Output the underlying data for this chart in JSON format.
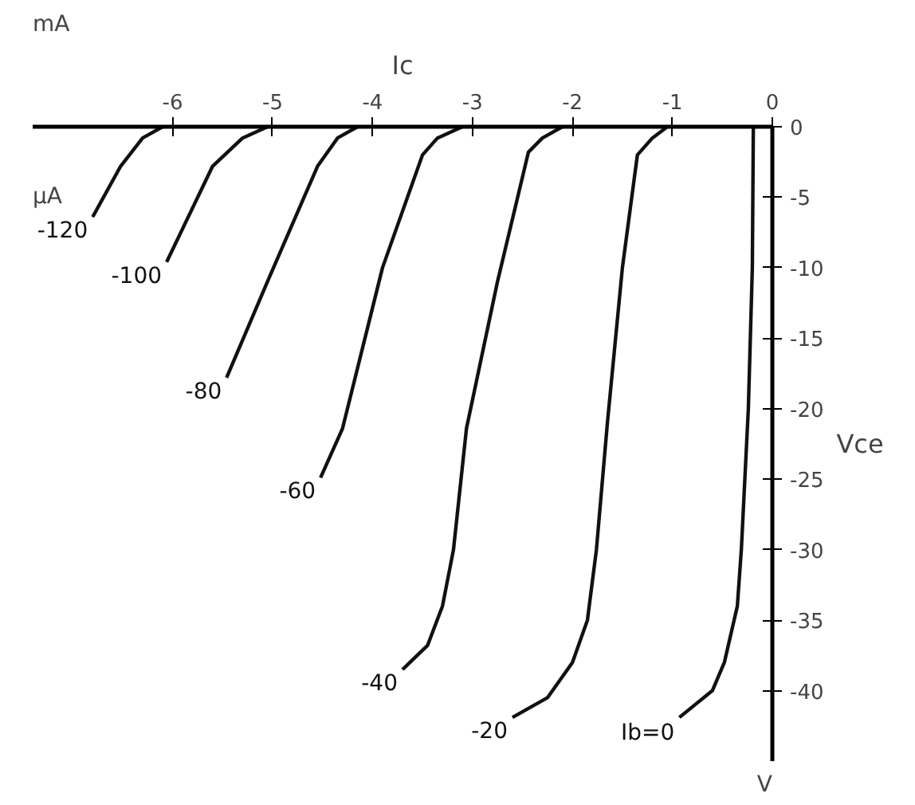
{
  "chart_data": {
    "type": "line",
    "xlabel": "Ic",
    "ylabel": "Vce",
    "xlim": [
      -7.4,
      0
    ],
    "ylim": [
      -45,
      0
    ],
    "xticks": [
      -6,
      -5,
      -4,
      -3,
      -2,
      -1,
      0
    ],
    "yticks": [
      0,
      -5,
      -10,
      -15,
      -20,
      -25,
      -30,
      -35,
      -40
    ],
    "annotations": [
      "mA",
      "µA",
      "V"
    ],
    "grid": false,
    "series": [
      {
        "name": "Ib=0",
        "color": "#111111",
        "x": [
          -0.19,
          -0.2,
          -0.24,
          -0.31,
          -0.35,
          -0.48,
          -0.6,
          -0.93
        ],
        "values": [
          0,
          -10,
          -20,
          -30,
          -34,
          -38,
          -40,
          -41.9
        ]
      },
      {
        "name": "-20",
        "color": "#111111",
        "x": [
          -1.05,
          -1.2,
          -1.35,
          -1.5,
          -1.65,
          -1.76,
          -1.85,
          -2.0,
          -2.25,
          -2.6
        ],
        "values": [
          0,
          -0.8,
          -2,
          -10,
          -21,
          -30,
          -35,
          -38,
          -40.5,
          -41.9
        ]
      },
      {
        "name": "-40",
        "color": "#111111",
        "x": [
          -2.1,
          -2.3,
          -2.44,
          -2.75,
          -3.06,
          -3.19,
          -3.3,
          -3.45,
          -3.7
        ],
        "values": [
          0,
          -0.8,
          -1.8,
          -11,
          -21.4,
          -30,
          -34,
          -36.8,
          -38.5
        ]
      },
      {
        "name": "-60",
        "color": "#111111",
        "x": [
          -3.1,
          -3.35,
          -3.5,
          -3.9,
          -4.3,
          -4.52
        ],
        "values": [
          0,
          -0.8,
          -2,
          -10,
          -21.4,
          -24.9
        ]
      },
      {
        "name": "-80",
        "color": "#111111",
        "x": [
          -4.15,
          -4.35,
          -4.55,
          -5.04,
          -5.46
        ],
        "values": [
          0,
          -0.8,
          -2.8,
          -10.8,
          -17.8
        ]
      },
      {
        "name": "-100",
        "color": "#111111",
        "x": [
          -5.05,
          -5.3,
          -5.6,
          -6.06
        ],
        "values": [
          0,
          -0.8,
          -2.8,
          -9.6
        ]
      },
      {
        "name": "-120",
        "color": "#111111",
        "x": [
          -6.1,
          -6.3,
          -6.52,
          -6.8
        ],
        "values": [
          0,
          -0.8,
          -2.8,
          -6.4
        ]
      }
    ]
  }
}
